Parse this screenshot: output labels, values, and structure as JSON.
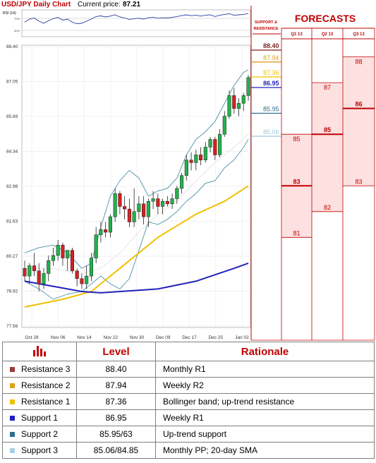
{
  "header": {
    "title": "USD/JPY Daily Chart",
    "price_label": "Current price:",
    "price_value": "87.21"
  },
  "rsi": {
    "label": "RSI (14)",
    "levels": [
      "70%",
      "30%"
    ]
  },
  "chart_data": {
    "type": "candlestick",
    "x_ticks": [
      "Oct 28",
      "Nov 06",
      "Nov 14",
      "Nov 22",
      "Nov 30",
      "Dec 09",
      "Dec 17",
      "Dec 25",
      "Jan 02"
    ],
    "y_ticks": [
      "88.40",
      "87.05",
      "85.69",
      "84.34",
      "82.98",
      "81.63",
      "80.27",
      "78.92",
      "77.56"
    ],
    "ylim": [
      77.56,
      88.4
    ],
    "candles": [
      [
        79.8,
        80.1,
        79.3,
        79.5
      ],
      [
        79.5,
        80.0,
        79.2,
        79.9
      ],
      [
        79.9,
        80.4,
        79.5,
        79.7
      ],
      [
        79.7,
        80.0,
        78.9,
        79.2
      ],
      [
        79.2,
        79.8,
        79.0,
        79.6
      ],
      [
        79.6,
        80.3,
        79.3,
        80.1
      ],
      [
        80.1,
        80.6,
        79.9,
        80.3
      ],
      [
        80.3,
        80.9,
        80.1,
        80.7
      ],
      [
        80.7,
        80.8,
        79.9,
        80.2
      ],
      [
        80.2,
        80.5,
        79.7,
        80.5
      ],
      [
        80.5,
        80.6,
        79.6,
        79.7
      ],
      [
        79.7,
        79.8,
        79.1,
        79.4
      ],
      [
        79.4,
        79.6,
        79.0,
        79.2
      ],
      [
        79.2,
        79.9,
        79.0,
        79.5
      ],
      [
        79.5,
        80.4,
        79.3,
        80.2
      ],
      [
        80.2,
        81.4,
        80.0,
        81.1
      ],
      [
        81.1,
        81.6,
        80.8,
        81.3
      ],
      [
        81.3,
        81.6,
        81.0,
        81.2
      ],
      [
        81.2,
        81.9,
        81.0,
        81.8
      ],
      [
        81.8,
        82.9,
        81.6,
        82.7
      ],
      [
        82.7,
        82.8,
        81.9,
        82.2
      ],
      [
        82.2,
        82.6,
        81.7,
        82.1
      ],
      [
        82.1,
        82.5,
        81.4,
        81.6
      ],
      [
        81.6,
        82.9,
        81.4,
        82.0
      ],
      [
        82.0,
        82.6,
        81.7,
        82.3
      ],
      [
        82.3,
        82.6,
        81.5,
        81.8
      ],
      [
        81.8,
        82.5,
        81.4,
        82.4
      ],
      [
        82.4,
        82.8,
        82.1,
        82.5
      ],
      [
        82.5,
        82.7,
        81.9,
        82.2
      ],
      [
        82.2,
        82.5,
        81.9,
        82.4
      ],
      [
        82.4,
        82.6,
        82.2,
        82.3
      ],
      [
        82.3,
        82.7,
        82.1,
        82.5
      ],
      [
        82.5,
        83.0,
        82.3,
        82.9
      ],
      [
        82.9,
        83.5,
        82.7,
        83.4
      ],
      [
        83.4,
        84.2,
        83.2,
        84.0
      ],
      [
        84.0,
        84.3,
        83.6,
        83.9
      ],
      [
        83.9,
        84.4,
        83.6,
        84.2
      ],
      [
        84.2,
        84.5,
        83.8,
        84.0
      ],
      [
        84.0,
        84.7,
        83.9,
        84.5
      ],
      [
        84.5,
        84.9,
        84.3,
        84.8
      ],
      [
        84.8,
        84.9,
        84.0,
        84.2
      ],
      [
        84.2,
        85.2,
        84.1,
        85.0
      ],
      [
        85.0,
        85.9,
        84.9,
        85.7
      ],
      [
        85.7,
        86.7,
        85.6,
        86.5
      ],
      [
        86.5,
        86.8,
        85.8,
        86.0
      ],
      [
        86.0,
        86.4,
        85.7,
        86.2
      ],
      [
        86.2,
        86.6,
        85.9,
        86.5
      ],
      [
        86.5,
        87.3,
        86.3,
        87.2
      ]
    ],
    "series": [
      {
        "name": "",
        "color": "#2222bb",
        "values": [
          [
            0,
            79.3
          ],
          [
            12,
            78.9
          ],
          [
            16,
            78.85
          ],
          [
            28,
            79.0
          ],
          [
            36,
            79.3
          ],
          [
            44,
            79.8
          ],
          [
            47,
            80.0
          ]
        ]
      },
      {
        "name": "",
        "color": "#f0c000",
        "values": [
          [
            0,
            78.3
          ],
          [
            8,
            78.6
          ],
          [
            14,
            78.9
          ],
          [
            20,
            79.8
          ],
          [
            28,
            81.0
          ],
          [
            36,
            81.9
          ],
          [
            42,
            82.4
          ],
          [
            47,
            83.0
          ]
        ]
      },
      {
        "name": "",
        "color": "#5c9bb0",
        "values": [
          [
            0,
            80.4
          ],
          [
            3,
            80.6
          ],
          [
            6,
            80.7
          ],
          [
            9,
            80.4
          ],
          [
            12,
            79.8
          ],
          [
            14,
            80.0
          ],
          [
            16,
            81.4
          ],
          [
            18,
            82.6
          ],
          [
            20,
            83.2
          ],
          [
            22,
            83.6
          ],
          [
            24,
            83.3
          ],
          [
            26,
            82.6
          ],
          [
            28,
            82.8
          ],
          [
            30,
            82.9
          ],
          [
            32,
            83.3
          ],
          [
            34,
            84.2
          ],
          [
            36,
            84.8
          ],
          [
            38,
            85.1
          ],
          [
            40,
            85.5
          ],
          [
            42,
            86.2
          ],
          [
            44,
            86.9
          ],
          [
            46,
            87.4
          ],
          [
            47,
            87.5
          ]
        ]
      },
      {
        "name": "",
        "color": "#5c9bb0",
        "values": [
          [
            0,
            79.3
          ],
          [
            3,
            79.0
          ],
          [
            6,
            78.6
          ],
          [
            9,
            78.8
          ],
          [
            12,
            78.9
          ],
          [
            14,
            79.2
          ],
          [
            16,
            79.5
          ],
          [
            18,
            79.2
          ],
          [
            20,
            79.0
          ],
          [
            22,
            79.4
          ],
          [
            24,
            80.5
          ],
          [
            26,
            81.6
          ],
          [
            28,
            81.5
          ],
          [
            30,
            81.7
          ],
          [
            32,
            82.0
          ],
          [
            34,
            82.4
          ],
          [
            36,
            82.7
          ],
          [
            38,
            83.1
          ],
          [
            40,
            83.2
          ],
          [
            42,
            83.7
          ],
          [
            44,
            84.0
          ],
          [
            46,
            84.5
          ],
          [
            47,
            84.8
          ]
        ]
      },
      {
        "name": "",
        "color": "#e6e6e6",
        "values": [
          [
            0,
            79.8
          ],
          [
            6,
            79.8
          ],
          [
            12,
            79.6
          ],
          [
            16,
            79.8
          ],
          [
            20,
            80.4
          ],
          [
            24,
            81.2
          ],
          [
            28,
            81.9
          ],
          [
            32,
            82.4
          ],
          [
            36,
            83.2
          ],
          [
            40,
            83.9
          ],
          [
            44,
            84.5
          ],
          [
            47,
            85.0
          ]
        ]
      }
    ]
  },
  "levels_panel": {
    "title_line1": "SUPPORT &",
    "title_line2": "RESISTANCE",
    "items": [
      {
        "label": "88.40",
        "value": 88.4,
        "color": "#7f1f1f"
      },
      {
        "label": "87.94",
        "value": 87.94,
        "color": "#e0a020"
      },
      {
        "label": "87.36",
        "value": 87.36,
        "color": "#f0c000"
      },
      {
        "label": "86.95",
        "value": 86.95,
        "color": "#2222bb"
      },
      {
        "label": "85.95",
        "value": 85.95,
        "color": "#2e6f8e"
      },
      {
        "label": "85.06",
        "value": 85.06,
        "color": "#9fc7dd"
      }
    ]
  },
  "forecasts": {
    "title": "FORECASTS",
    "columns": [
      {
        "label": "Q1 13",
        "low": 81,
        "mid": 83,
        "high": 85,
        "low_label": "81",
        "mid_label": "83",
        "high_label": "85"
      },
      {
        "label": "Q2 13",
        "low": 82,
        "mid": 85,
        "high": 87,
        "low_label": "82",
        "mid_label": "85",
        "high_label": "87"
      },
      {
        "label": "Q3 13",
        "low": 83,
        "mid": 86,
        "high": 88,
        "low_label": "83",
        "mid_label": "86",
        "high_label": "88"
      }
    ]
  },
  "table": {
    "header": {
      "level": "Level",
      "rationale": "Rationale"
    },
    "rows": [
      {
        "name": "Resistance 3",
        "level": "88.40",
        "rationale": "Monthly R1",
        "color": "#9b3a3a"
      },
      {
        "name": "Resistance 2",
        "level": "87.94",
        "rationale": "Weekly R2",
        "color": "#e0a020"
      },
      {
        "name": "Resistance 1",
        "level": "87.36",
        "rationale": "Bollinger band; up-trend resistance",
        "color": "#f0c000"
      },
      {
        "name": "Support 1",
        "level": "86.95",
        "rationale": "Weekly R1",
        "color": "#2020bb"
      },
      {
        "name": "Support 2",
        "level": "85.95/63",
        "rationale": "Up-trend support",
        "color": "#2e6f8e"
      },
      {
        "name": "Support 3",
        "level": "85.06/84.85",
        "rationale": "Monthly PP; 20-day SMA",
        "color": "#a9cde4"
      }
    ]
  }
}
